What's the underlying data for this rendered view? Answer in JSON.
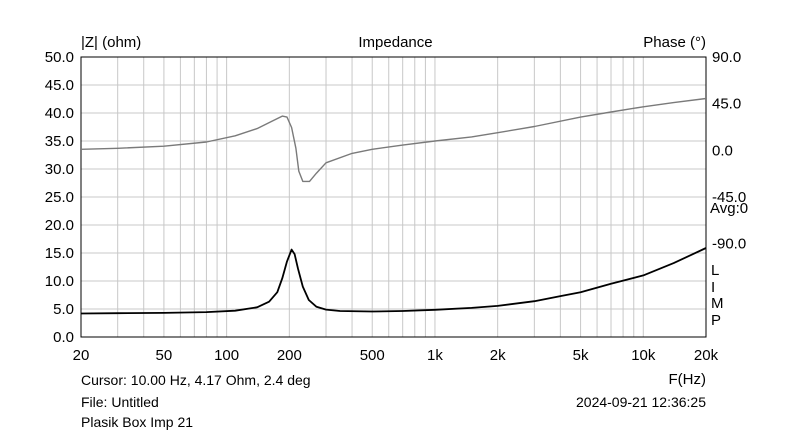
{
  "chart_data": {
    "type": "line",
    "title": "Impedance",
    "ylabel_left": "|Z| (ohm)",
    "ylabel_right": "Phase (°)",
    "xlabel": "F(Hz)",
    "x_scale": "log",
    "xlim": [
      20,
      20000
    ],
    "ylim_left": [
      0,
      50
    ],
    "ylim_right": [
      -180,
      90
    ],
    "grid": true,
    "x_ticks": [
      {
        "value": 20,
        "label": "20"
      },
      {
        "value": 50,
        "label": "50"
      },
      {
        "value": 100,
        "label": "100"
      },
      {
        "value": 200,
        "label": "200"
      },
      {
        "value": 500,
        "label": "500"
      },
      {
        "value": 1000,
        "label": "1k"
      },
      {
        "value": 2000,
        "label": "2k"
      },
      {
        "value": 5000,
        "label": "5k"
      },
      {
        "value": 10000,
        "label": "10k"
      },
      {
        "value": 20000,
        "label": "20k"
      }
    ],
    "y_ticks_left": [
      "0.0",
      "5.0",
      "10.0",
      "15.0",
      "20.0",
      "25.0",
      "30.0",
      "35.0",
      "40.0",
      "45.0",
      "50.0"
    ],
    "y_ticks_right": [
      {
        "value": 90,
        "label": "90.0"
      },
      {
        "value": 45,
        "label": "45.0"
      },
      {
        "value": 0,
        "label": "0.0"
      },
      {
        "value": -45,
        "label": "-45.0"
      },
      {
        "value": -90,
        "label": "-90.0"
      }
    ],
    "right_annotation": "Avg:0",
    "legend_letters": [
      "L",
      "I",
      "M",
      "P"
    ],
    "series": [
      {
        "axis": "left",
        "color": "#000000",
        "points": [
          [
            20,
            4.2
          ],
          [
            30,
            4.25
          ],
          [
            50,
            4.3
          ],
          [
            80,
            4.45
          ],
          [
            110,
            4.7
          ],
          [
            140,
            5.3
          ],
          [
            160,
            6.3
          ],
          [
            175,
            8.0
          ],
          [
            185,
            10.5
          ],
          [
            195,
            13.5
          ],
          [
            205,
            15.6
          ],
          [
            212,
            14.8
          ],
          [
            220,
            12.2
          ],
          [
            232,
            9.0
          ],
          [
            248,
            6.6
          ],
          [
            270,
            5.4
          ],
          [
            300,
            4.9
          ],
          [
            350,
            4.65
          ],
          [
            500,
            4.55
          ],
          [
            700,
            4.65
          ],
          [
            1000,
            4.85
          ],
          [
            1500,
            5.2
          ],
          [
            2000,
            5.55
          ],
          [
            3000,
            6.4
          ],
          [
            4000,
            7.3
          ],
          [
            5000,
            8.0
          ],
          [
            7000,
            9.5
          ],
          [
            10000,
            11.0
          ],
          [
            14000,
            13.2
          ],
          [
            20000,
            15.9
          ]
        ]
      },
      {
        "axis": "right",
        "color": "#7a7a7a",
        "points": [
          [
            20,
            1
          ],
          [
            30,
            2
          ],
          [
            50,
            4
          ],
          [
            80,
            8
          ],
          [
            110,
            14
          ],
          [
            140,
            21
          ],
          [
            165,
            28
          ],
          [
            185,
            33
          ],
          [
            195,
            32
          ],
          [
            205,
            22
          ],
          [
            215,
            2
          ],
          [
            222,
            -20
          ],
          [
            232,
            -30
          ],
          [
            250,
            -30
          ],
          [
            270,
            -22
          ],
          [
            300,
            -12
          ],
          [
            400,
            -3
          ],
          [
            500,
            1
          ],
          [
            700,
            5
          ],
          [
            1000,
            9
          ],
          [
            1500,
            13
          ],
          [
            2000,
            17
          ],
          [
            3000,
            23
          ],
          [
            5000,
            32
          ],
          [
            7000,
            37
          ],
          [
            10000,
            42
          ],
          [
            14000,
            46
          ],
          [
            20000,
            50
          ]
        ]
      }
    ]
  },
  "footer": {
    "cursor": "Cursor: 10.00 Hz, 4.17 Ohm, 2.4 deg",
    "file": "File: Untitled",
    "description": "Plasik Box Imp 21",
    "timestamp": "2024-09-21 12:36:25"
  }
}
